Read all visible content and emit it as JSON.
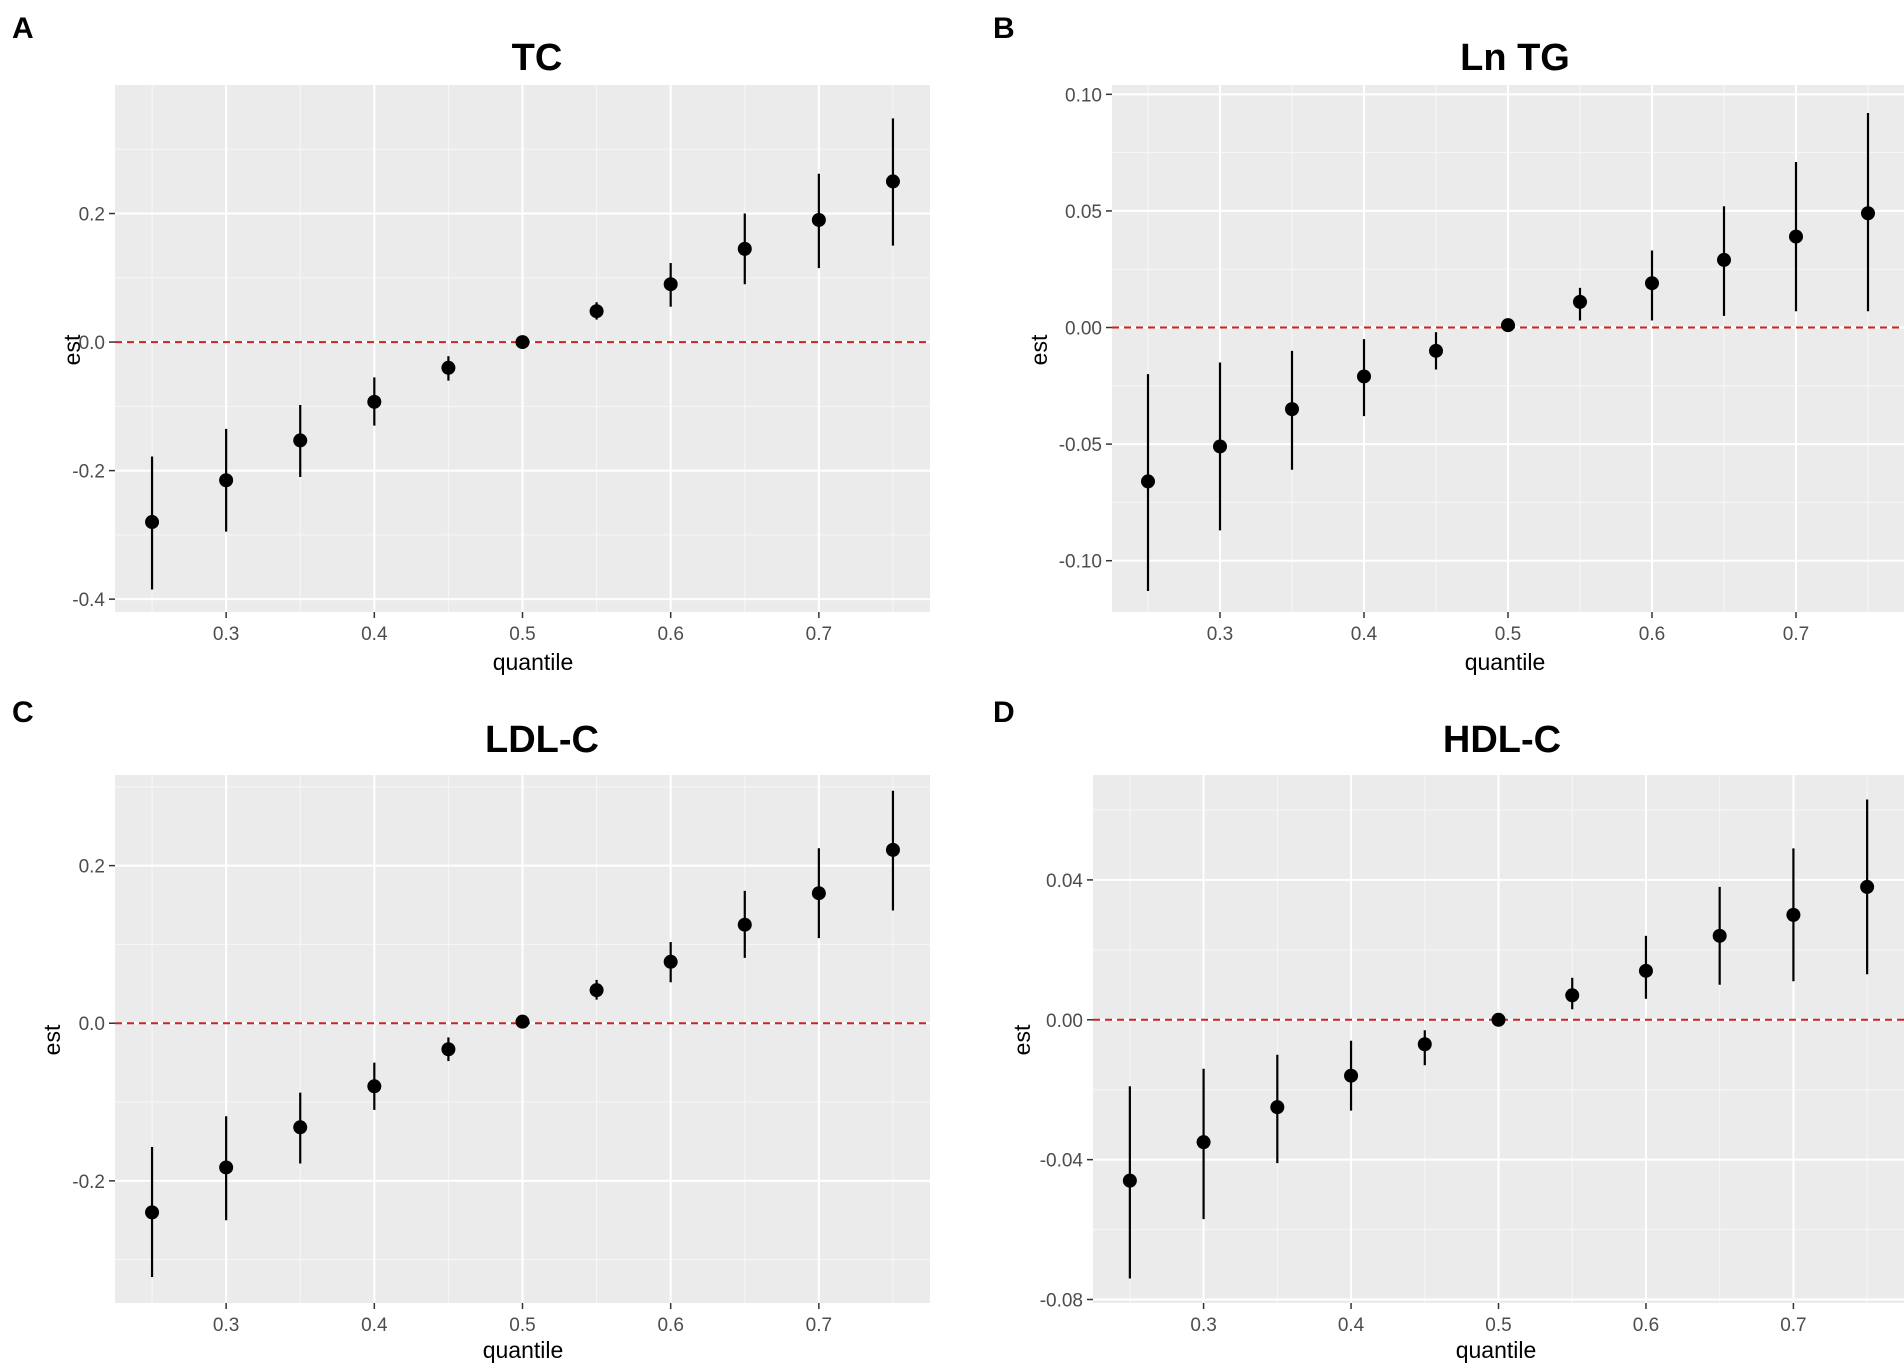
{
  "chart_data": [
    {
      "type": "scatter",
      "panel": "A",
      "title": "TC",
      "xlabel": "quantile",
      "ylabel": "est",
      "xlim": [
        0.225,
        0.775
      ],
      "ylim": [
        -0.42,
        0.4
      ],
      "xticks": [
        0.3,
        0.4,
        0.5,
        0.6,
        0.7
      ],
      "xtick_labels": [
        "0.3",
        "0.4",
        "0.5",
        "0.6",
        "0.7"
      ],
      "yticks": [
        -0.4,
        -0.2,
        0.0,
        0.2
      ],
      "ytick_labels": [
        "-0.4",
        "-0.2",
        "0.0",
        "0.2"
      ],
      "reference_line": 0,
      "x": [
        0.25,
        0.3,
        0.35,
        0.4,
        0.45,
        0.5,
        0.55,
        0.6,
        0.65,
        0.7,
        0.75
      ],
      "est": [
        -0.28,
        -0.215,
        -0.153,
        -0.093,
        -0.04,
        0.0,
        0.048,
        0.09,
        0.145,
        0.19,
        0.25
      ],
      "lower": [
        -0.385,
        -0.295,
        -0.21,
        -0.13,
        -0.06,
        0.0,
        0.035,
        0.055,
        0.09,
        0.115,
        0.15
      ],
      "upper": [
        -0.178,
        -0.135,
        -0.098,
        -0.055,
        -0.022,
        0.0,
        0.062,
        0.123,
        0.2,
        0.262,
        0.348
      ]
    },
    {
      "type": "scatter",
      "panel": "B",
      "title": "Ln TG",
      "xlabel": "quantile",
      "ylabel": "est",
      "xlim": [
        0.225,
        0.775
      ],
      "ylim": [
        -0.122,
        0.104
      ],
      "xticks": [
        0.3,
        0.4,
        0.5,
        0.6,
        0.7
      ],
      "xtick_labels": [
        "0.3",
        "0.4",
        "0.5",
        "0.6",
        "0.7"
      ],
      "yticks": [
        -0.1,
        -0.05,
        0.0,
        0.05,
        0.1
      ],
      "ytick_labels": [
        "-0.10",
        "-0.05",
        "0.00",
        "0.05",
        "0.10"
      ],
      "reference_line": 0,
      "x": [
        0.25,
        0.3,
        0.35,
        0.4,
        0.45,
        0.5,
        0.55,
        0.6,
        0.65,
        0.7,
        0.75
      ],
      "est": [
        -0.066,
        -0.051,
        -0.035,
        -0.021,
        -0.01,
        0.001,
        0.011,
        0.019,
        0.029,
        0.039,
        0.049
      ],
      "lower": [
        -0.113,
        -0.087,
        -0.061,
        -0.038,
        -0.018,
        0.001,
        0.003,
        0.003,
        0.005,
        0.007,
        0.007
      ],
      "upper": [
        -0.02,
        -0.015,
        -0.01,
        -0.005,
        -0.002,
        0.001,
        0.017,
        0.033,
        0.052,
        0.071,
        0.092
      ]
    },
    {
      "type": "scatter",
      "panel": "C",
      "title": "LDL-C",
      "xlabel": "quantile",
      "ylabel": "est",
      "xlim": [
        0.225,
        0.775
      ],
      "ylim": [
        -0.355,
        0.315
      ],
      "xticks": [
        0.3,
        0.4,
        0.5,
        0.6,
        0.7
      ],
      "xtick_labels": [
        "0.3",
        "0.4",
        "0.5",
        "0.6",
        "0.7"
      ],
      "yticks": [
        -0.2,
        0.0,
        0.2
      ],
      "ytick_labels": [
        "-0.2",
        "0.0",
        "0.2"
      ],
      "reference_line": 0,
      "x": [
        0.25,
        0.3,
        0.35,
        0.4,
        0.45,
        0.5,
        0.55,
        0.6,
        0.65,
        0.7,
        0.75
      ],
      "est": [
        -0.24,
        -0.183,
        -0.132,
        -0.08,
        -0.033,
        0.002,
        0.042,
        0.078,
        0.125,
        0.165,
        0.22
      ],
      "lower": [
        -0.322,
        -0.25,
        -0.178,
        -0.11,
        -0.048,
        0.002,
        0.03,
        0.052,
        0.083,
        0.108,
        0.143
      ],
      "upper": [
        -0.157,
        -0.118,
        -0.088,
        -0.05,
        -0.018,
        0.002,
        0.055,
        0.103,
        0.168,
        0.222,
        0.295
      ]
    },
    {
      "type": "scatter",
      "panel": "D",
      "title": "HDL-C",
      "xlabel": "quantile",
      "ylabel": "est",
      "xlim": [
        0.225,
        0.775
      ],
      "ylim": [
        -0.081,
        0.07
      ],
      "xticks": [
        0.3,
        0.4,
        0.5,
        0.6,
        0.7
      ],
      "xtick_labels": [
        "0.3",
        "0.4",
        "0.5",
        "0.6",
        "0.7"
      ],
      "yticks": [
        -0.08,
        -0.04,
        0.0,
        0.04
      ],
      "ytick_labels": [
        "-0.08",
        "-0.04",
        "0.00",
        "0.04"
      ],
      "reference_line": 0,
      "x": [
        0.25,
        0.3,
        0.35,
        0.4,
        0.45,
        0.5,
        0.55,
        0.6,
        0.65,
        0.7,
        0.75
      ],
      "est": [
        -0.046,
        -0.035,
        -0.025,
        -0.016,
        -0.007,
        0.0,
        0.007,
        0.014,
        0.024,
        0.03,
        0.038
      ],
      "lower": [
        -0.074,
        -0.057,
        -0.041,
        -0.026,
        -0.013,
        0.0,
        0.003,
        0.006,
        0.01,
        0.011,
        0.013
      ],
      "upper": [
        -0.019,
        -0.014,
        -0.01,
        -0.006,
        -0.003,
        0.0,
        0.012,
        0.024,
        0.038,
        0.049,
        0.063
      ]
    }
  ]
}
